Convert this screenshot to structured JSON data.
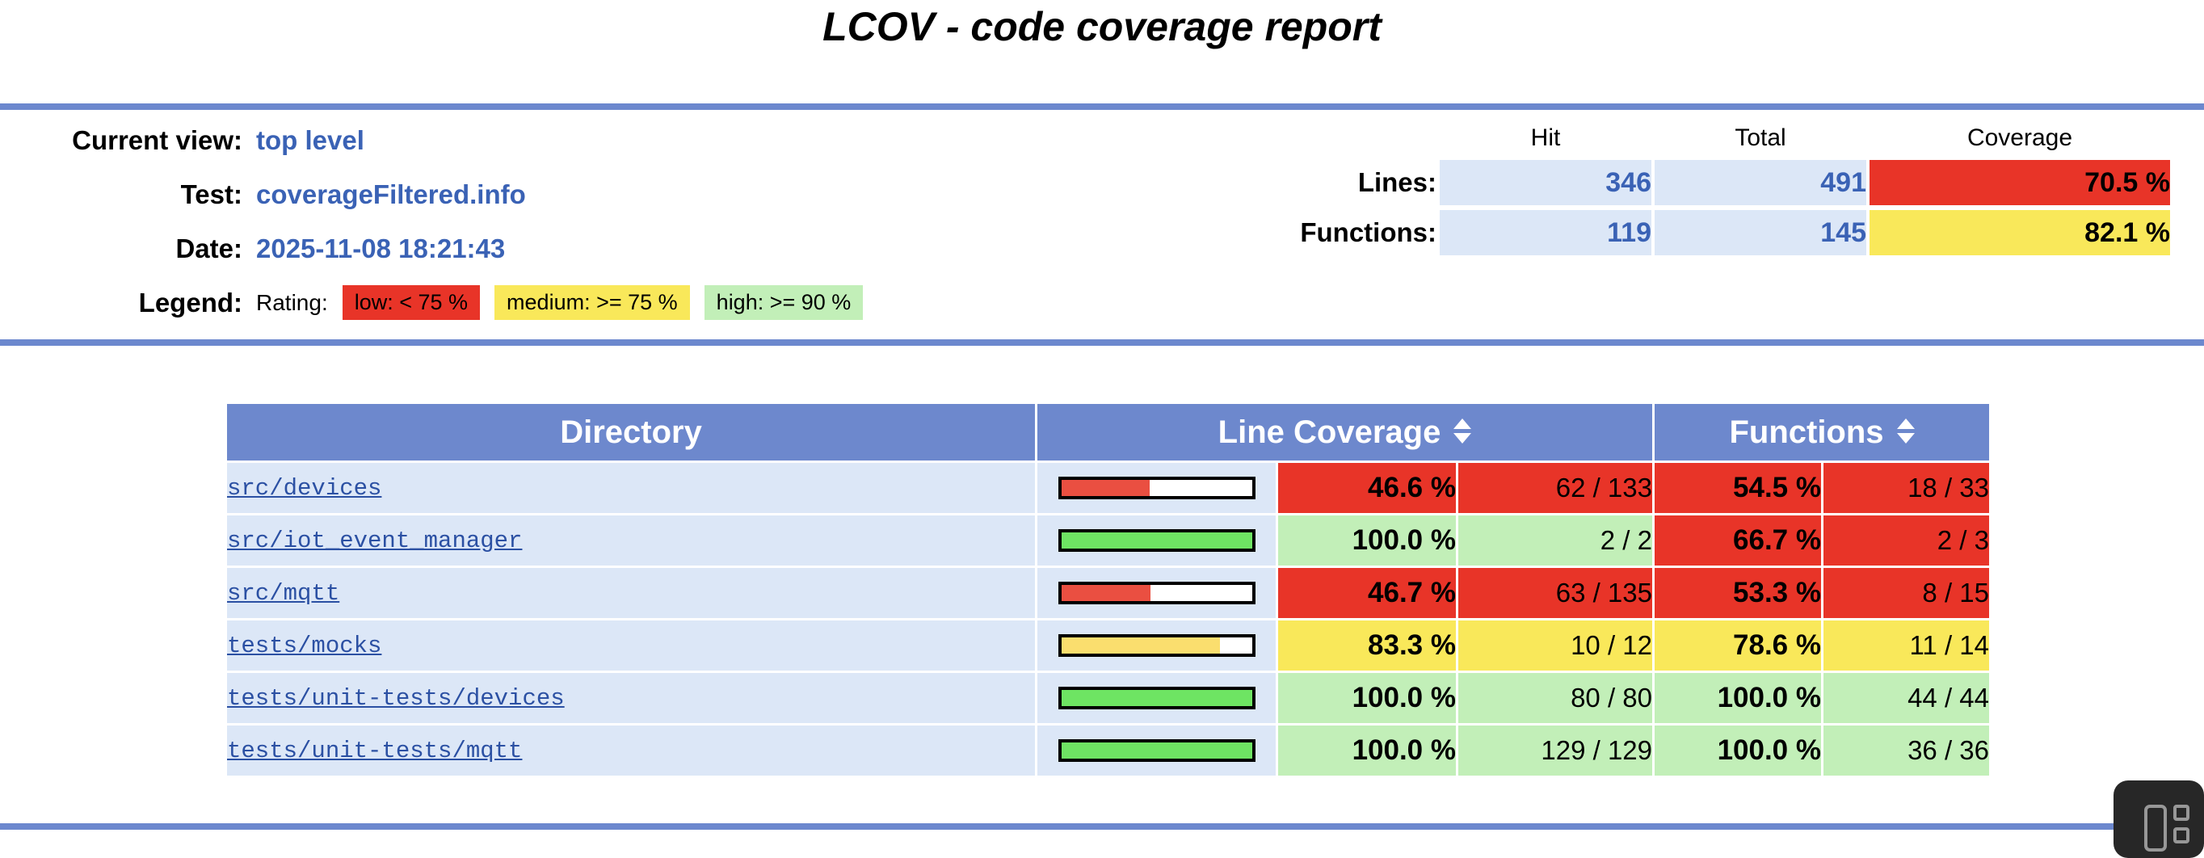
{
  "title": "LCOV - code coverage report",
  "info": {
    "rows": [
      {
        "label": "Current view:",
        "value": "top level"
      },
      {
        "label": "Test:",
        "value": "coverageFiltered.info"
      },
      {
        "label": "Date:",
        "value": "2025-11-08 18:21:43"
      }
    ],
    "legend": {
      "label": "Legend:",
      "rating_label": "Rating:",
      "items": [
        {
          "name": "low",
          "text": "low: < 75 %"
        },
        {
          "name": "medium",
          "text": "medium: >= 75 %"
        },
        {
          "name": "high",
          "text": "high: >= 90 %"
        }
      ]
    }
  },
  "stats": {
    "columns": [
      "Hit",
      "Total",
      "Coverage"
    ],
    "rows": [
      {
        "label": "Lines:",
        "hit": "346",
        "total": "491",
        "coverage": "70.5 %",
        "rating": "low"
      },
      {
        "label": "Functions:",
        "hit": "119",
        "total": "145",
        "coverage": "82.1 %",
        "rating": "medium"
      }
    ]
  },
  "table": {
    "directory_header": "Directory",
    "line_coverage_header": "Line Coverage",
    "functions_header": "Functions",
    "rows": [
      {
        "directory": "src/devices",
        "line_bar": 46.6,
        "line_pct": "46.6 %",
        "line_ratio": "62 / 133",
        "line_rating": "low",
        "func_pct": "54.5 %",
        "func_ratio": "18 / 33",
        "func_rating": "low"
      },
      {
        "directory": "src/iot_event_manager",
        "line_bar": 100,
        "line_pct": "100.0 %",
        "line_ratio": "2 / 2",
        "line_rating": "high",
        "func_pct": "66.7 %",
        "func_ratio": "2 / 3",
        "func_rating": "low"
      },
      {
        "directory": "src/mqtt",
        "line_bar": 46.7,
        "line_pct": "46.7 %",
        "line_ratio": "63 / 135",
        "line_rating": "low",
        "func_pct": "53.3 %",
        "func_ratio": "8 / 15",
        "func_rating": "low"
      },
      {
        "directory": "tests/mocks",
        "line_bar": 83.3,
        "line_pct": "83.3 %",
        "line_ratio": "10 / 12",
        "line_rating": "medium",
        "func_pct": "78.6 %",
        "func_ratio": "11 / 14",
        "func_rating": "medium"
      },
      {
        "directory": "tests/unit-tests/devices",
        "line_bar": 100,
        "line_pct": "100.0 %",
        "line_ratio": "80 / 80",
        "line_rating": "high",
        "func_pct": "100.0 %",
        "func_ratio": "44 / 44",
        "func_rating": "high"
      },
      {
        "directory": "tests/unit-tests/mqtt",
        "line_bar": 100,
        "line_pct": "100.0 %",
        "line_ratio": "129 / 129",
        "line_rating": "high",
        "func_pct": "100.0 %",
        "func_ratio": "36 / 36",
        "func_rating": "high"
      }
    ]
  },
  "colors": {
    "rule": "#6c88ce",
    "table_header": "#6d88cd",
    "row_bg": "#dce7f7",
    "link": "#2b50a3",
    "value": "#3a62b5",
    "low": "#e83428",
    "medium": "#f9e85a",
    "high": "#c2efb8",
    "bar_low": "#ea4f41",
    "bar_medium": "#fade6e",
    "bar_high": "#6ee463"
  },
  "overlay": {
    "icon": "sidebar-layout-icon"
  }
}
